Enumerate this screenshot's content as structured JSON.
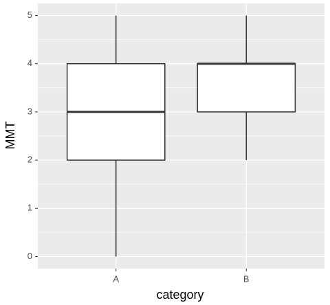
{
  "chart_data": {
    "type": "box",
    "x_label": "category",
    "y_label": "MMT",
    "categories": [
      "A",
      "B"
    ],
    "min": [
      0,
      2
    ],
    "q1": [
      2,
      3
    ],
    "median": [
      3,
      4
    ],
    "q3": [
      4,
      4
    ],
    "max": [
      5,
      5
    ],
    "color": "#333333",
    "fill": "#ffffff",
    "background": "#ebebeb",
    "grid": true,
    "ylim": [
      -0.25,
      5.25
    ],
    "yticks": [
      0,
      1,
      2,
      3,
      4,
      5
    ]
  }
}
